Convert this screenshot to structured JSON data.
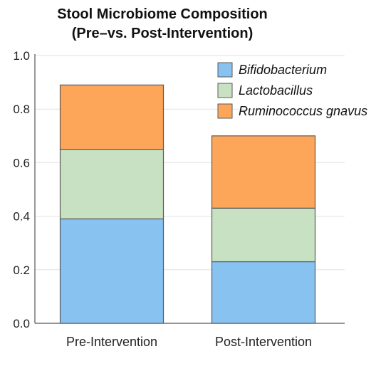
{
  "chart_data": {
    "type": "bar",
    "stacked": true,
    "title": [
      "Stool Microbiome Composition",
      "(Pre–vs. Post-Intervention)"
    ],
    "xlabel": "",
    "ylabel": "",
    "ylim": [
      0,
      1.0
    ],
    "yticks": [
      "0.0",
      "0.2",
      "0.4",
      "0.6",
      "0.8",
      "1.0"
    ],
    "grid": true,
    "legend_position": "top-right",
    "categories": [
      "Pre-Intervention",
      "Post-Intervention"
    ],
    "series": [
      {
        "name": "Bifidobacterium",
        "color": "#88c2f0",
        "values": [
          0.39,
          0.23
        ]
      },
      {
        "name": "Lactobacillus",
        "color": "#c8e1c3",
        "values": [
          0.26,
          0.2
        ]
      },
      {
        "name": "Ruminococcus gnavus",
        "color": "#fda65a",
        "values": [
          0.24,
          0.27
        ]
      }
    ]
  }
}
